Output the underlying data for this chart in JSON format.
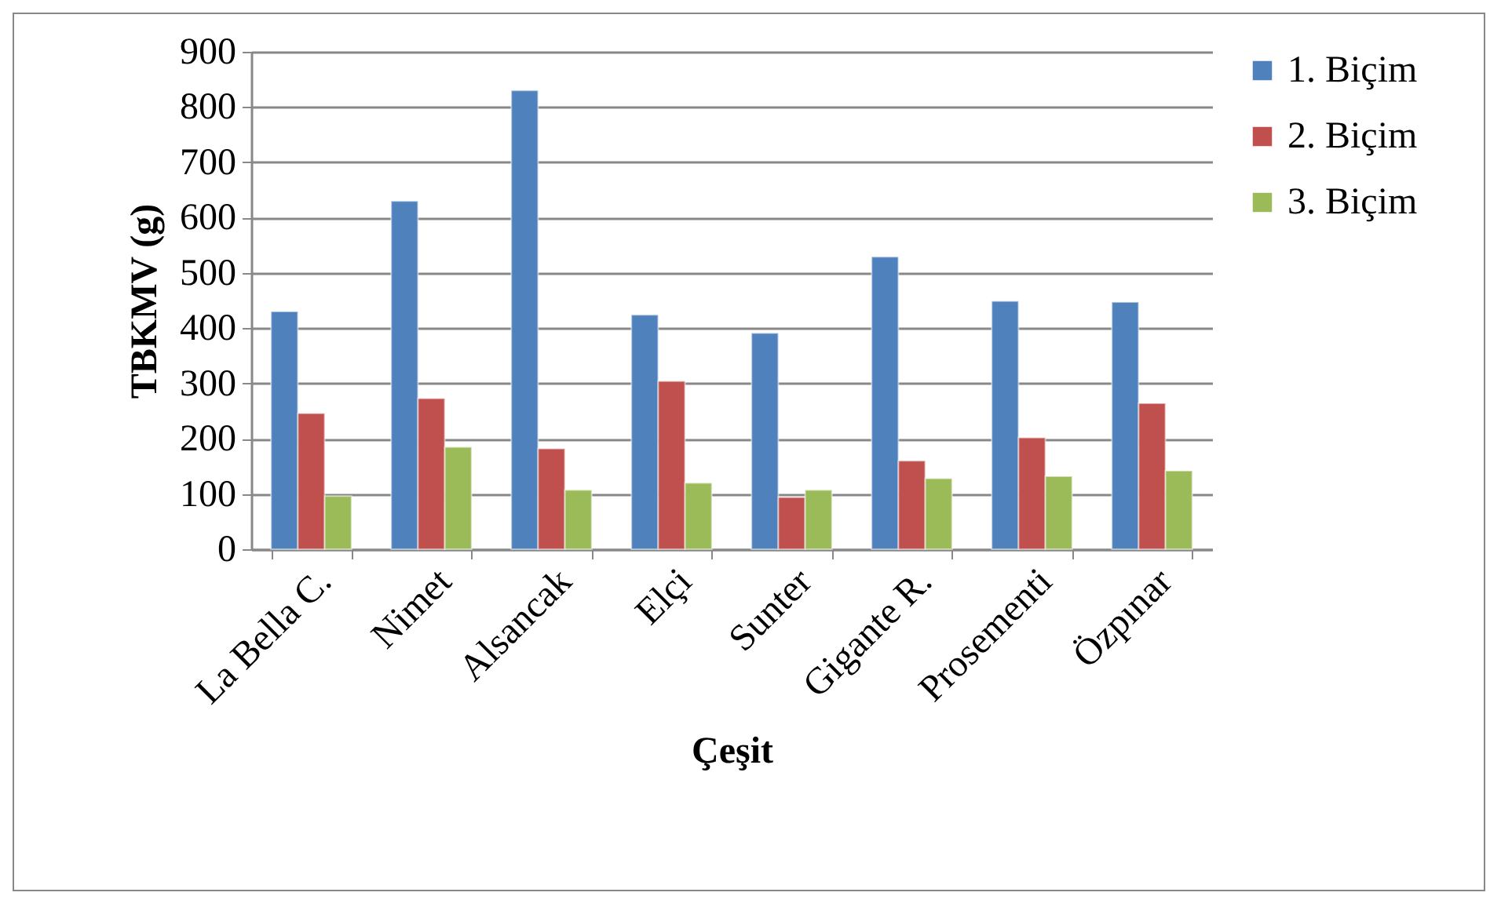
{
  "chart_data": {
    "type": "bar",
    "xlabel": "Çeşit",
    "ylabel": "TBKMV (g)",
    "categories": [
      "La Bella C.",
      "Nimet",
      "Alsancak",
      "Elçi",
      "Sunter",
      "Gigante R.",
      "Prosementi",
      "Özpınar"
    ],
    "series": [
      {
        "name": "1. Biçim",
        "color": "#4f81bd",
        "values": [
          430,
          630,
          830,
          424,
          391,
          529,
          449,
          447
        ]
      },
      {
        "name": "2. Biçim",
        "color": "#c0504d",
        "values": [
          246,
          273,
          182,
          304,
          94,
          160,
          202,
          264
        ]
      },
      {
        "name": "3. Biçim",
        "color": "#9bbb59",
        "values": [
          96,
          185,
          107,
          120,
          107,
          128,
          132,
          142
        ]
      }
    ],
    "ylim": [
      0,
      900
    ],
    "yticks": [
      0,
      100,
      200,
      300,
      400,
      500,
      600,
      700,
      800,
      900
    ],
    "grid": "y",
    "legend": "right"
  }
}
